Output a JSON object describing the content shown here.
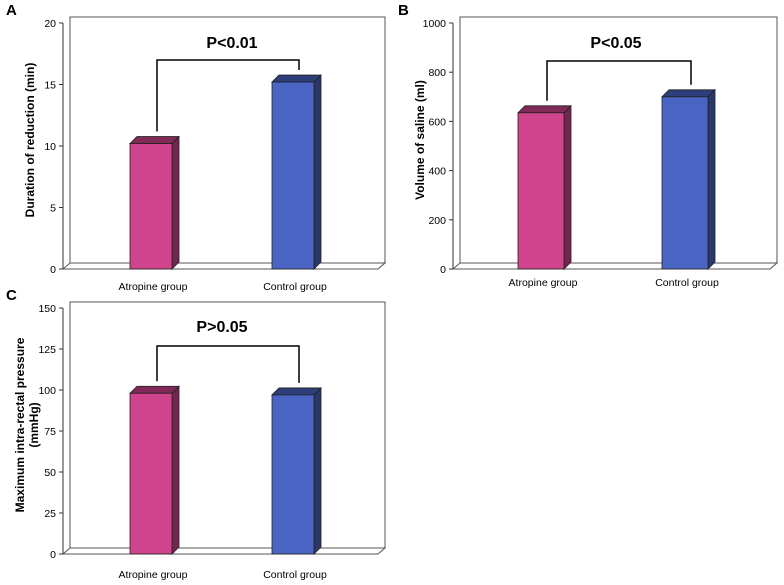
{
  "chart_data": [
    {
      "type": "bar",
      "panel": "A",
      "categories": [
        "Atropine group",
        "Control group"
      ],
      "values": [
        10.2,
        15.2
      ],
      "colors": [
        "#d0448e",
        "#4a64c4"
      ],
      "ylabel": "Duration of reduction (min)",
      "ylim": [
        0,
        20
      ],
      "yticks": [
        0,
        5,
        10,
        15,
        20
      ],
      "annotation": "P<0.01",
      "grid": false
    },
    {
      "type": "bar",
      "panel": "B",
      "categories": [
        "Atropine group",
        "Control group"
      ],
      "values": [
        635,
        700
      ],
      "colors": [
        "#d0448e",
        "#4a64c4"
      ],
      "ylabel": "Volume of saline (ml)",
      "ylim": [
        0,
        1000
      ],
      "yticks": [
        0,
        200,
        400,
        600,
        800,
        1000
      ],
      "annotation": "P<0.05",
      "grid": false
    },
    {
      "type": "bar",
      "panel": "C",
      "categories": [
        "Atropine group",
        "Control group"
      ],
      "values": [
        98,
        97
      ],
      "colors": [
        "#d0448e",
        "#4a64c4"
      ],
      "ylabel": [
        "Maximum intra-rectal pressure",
        "(mmHg)"
      ],
      "ylim": [
        0,
        150
      ],
      "yticks": [
        0,
        25,
        50,
        75,
        100,
        125,
        150
      ],
      "annotation": "P>0.05",
      "grid": false
    }
  ]
}
